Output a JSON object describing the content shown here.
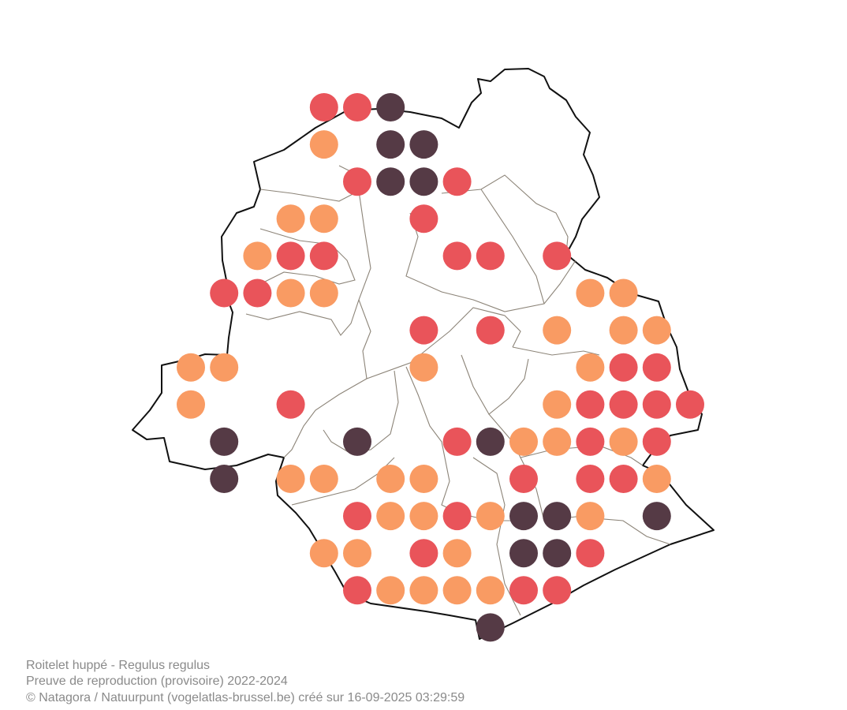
{
  "caption": {
    "title": "Roitelet huppé - Regulus regulus",
    "subtitle": "Preuve de reproduction (provisoire) 2022-2024",
    "credit": "© Natagora / Natuurpunt (vogelatlas-brussel.be) créé sur 16-09-2025 03:29:59"
  }
}
